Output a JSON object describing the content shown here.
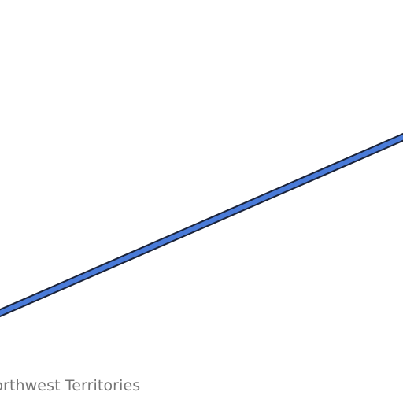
{
  "map": {
    "place_label": "Northwest Territories",
    "route": {
      "fill_color": "#4a7bd8",
      "stroke_color": "#1a2238"
    },
    "label_color": "#757575",
    "background_color": "#ffffff"
  }
}
